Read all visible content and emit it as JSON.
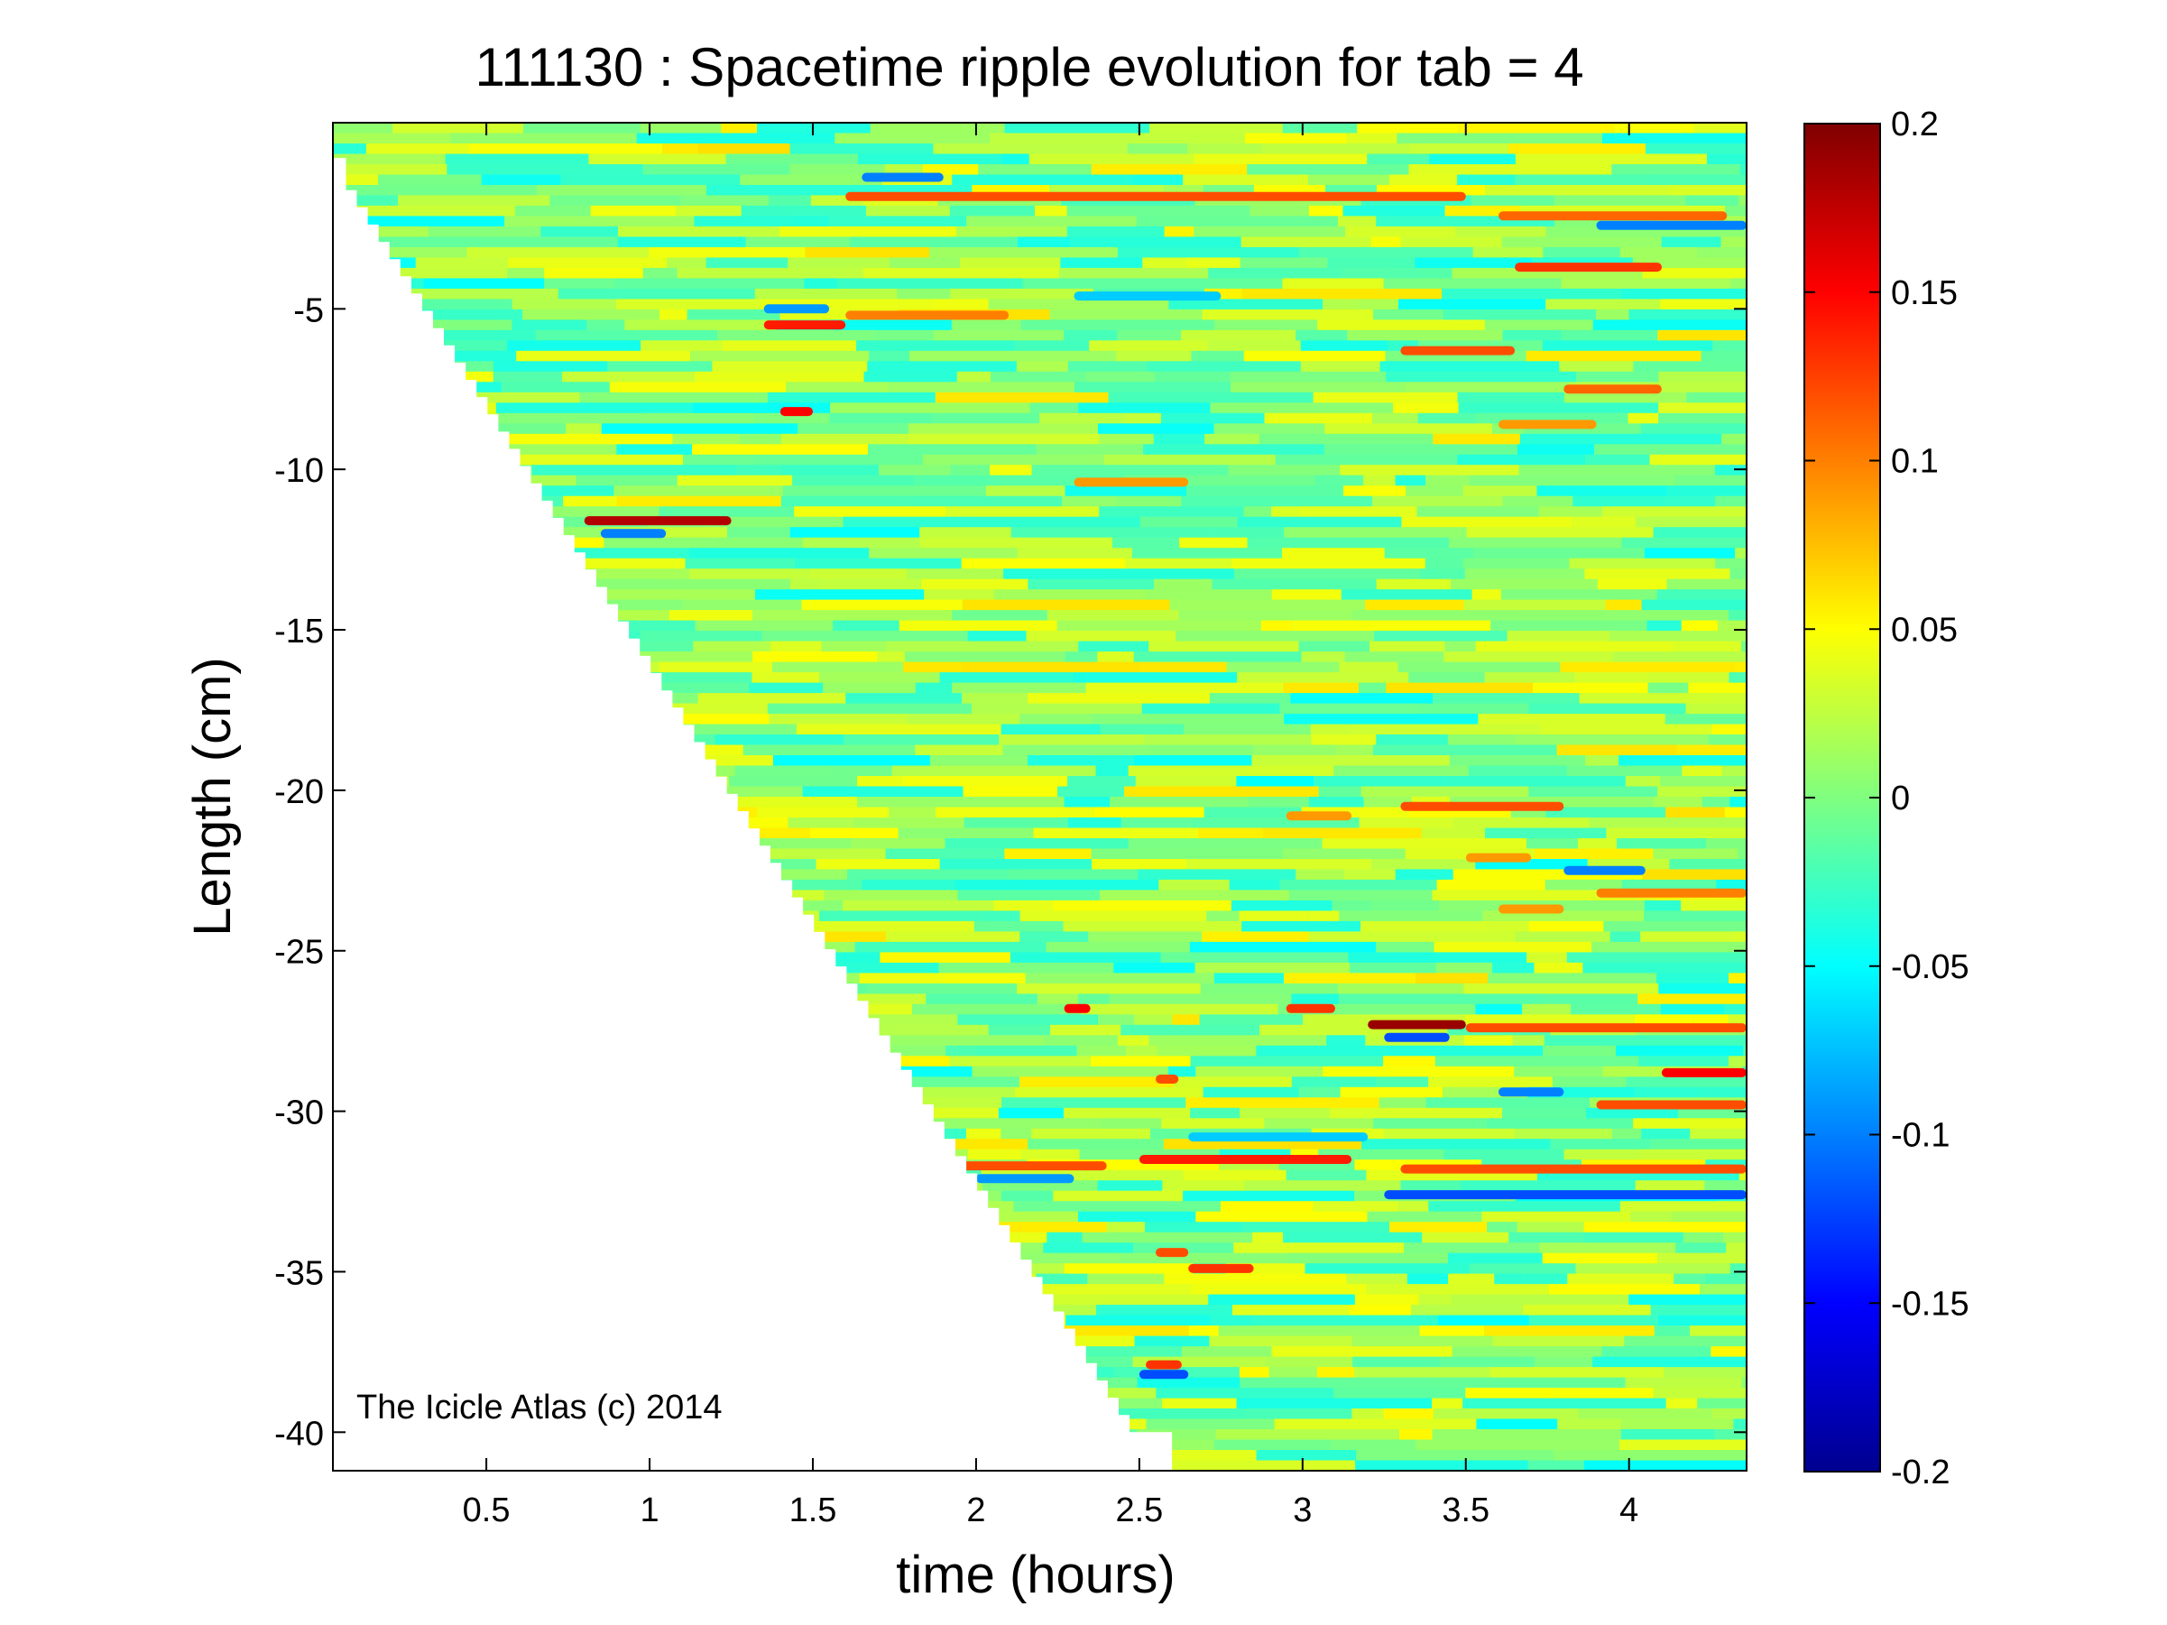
{
  "chart_data": {
    "type": "heatmap",
    "title": "111130 : Spacetime ripple evolution for tab = 4",
    "xlabel": "time (hours)",
    "ylabel": "Length (cm)",
    "xlim": [
      0.03,
      4.36
    ],
    "ylim": [
      -41.2,
      0.8
    ],
    "x_ticks": [
      0.5,
      1,
      1.5,
      2,
      2.5,
      3,
      3.5,
      4
    ],
    "y_ticks": [
      -5,
      -10,
      -15,
      -20,
      -25,
      -30,
      -35,
      -40
    ],
    "colorbar": {
      "colormap": "jet",
      "range": [
        -0.2,
        0.2
      ],
      "ticks": [
        0.2,
        0.15,
        0.1,
        0.05,
        0,
        -0.05,
        -0.1,
        -0.15,
        -0.2
      ]
    },
    "grid": false,
    "annotation": "The Icicle Atlas (c) 2014",
    "data_boundary": {
      "description": "icicle length grows with time; cells exist only where length >= -(tip length at time t)",
      "points": [
        [
          0.03,
          -0.3
        ],
        [
          0.07,
          -1.3
        ],
        [
          2.47,
          -40.0
        ],
        [
          2.6,
          -41.2
        ]
      ]
    },
    "features": [
      {
        "t_start": 1.6,
        "t_end": 3.5,
        "length": -1.5,
        "value": 0.12
      },
      {
        "t_start": 1.65,
        "t_end": 1.9,
        "length": -0.9,
        "value": -0.1
      },
      {
        "t_start": 3.6,
        "t_end": 4.3,
        "length": -2.1,
        "value": 0.11
      },
      {
        "t_start": 3.9,
        "t_end": 4.36,
        "length": -2.4,
        "value": -0.1
      },
      {
        "t_start": 3.65,
        "t_end": 4.1,
        "length": -3.7,
        "value": 0.13
      },
      {
        "t_start": 2.3,
        "t_end": 2.75,
        "length": -4.6,
        "value": -0.07
      },
      {
        "t_start": 1.35,
        "t_end": 1.6,
        "length": -5.5,
        "value": 0.14
      },
      {
        "t_start": 1.6,
        "t_end": 2.1,
        "length": -5.2,
        "value": 0.1
      },
      {
        "t_start": 1.35,
        "t_end": 1.55,
        "length": -5.0,
        "value": -0.09
      },
      {
        "t_start": 3.3,
        "t_end": 3.65,
        "length": -6.3,
        "value": 0.12
      },
      {
        "t_start": 3.8,
        "t_end": 4.1,
        "length": -7.5,
        "value": 0.11
      },
      {
        "t_start": 1.4,
        "t_end": 1.5,
        "length": -8.2,
        "value": 0.15
      },
      {
        "t_start": 3.6,
        "t_end": 3.9,
        "length": -8.6,
        "value": 0.09
      },
      {
        "t_start": 2.3,
        "t_end": 2.65,
        "length": -10.4,
        "value": 0.09
      },
      {
        "t_start": 0.8,
        "t_end": 1.25,
        "length": -11.6,
        "value": 0.18
      },
      {
        "t_start": 0.85,
        "t_end": 1.05,
        "length": -12.0,
        "value": -0.1
      },
      {
        "t_start": 3.3,
        "t_end": 3.8,
        "length": -20.5,
        "value": 0.12
      },
      {
        "t_start": 2.95,
        "t_end": 3.15,
        "length": -20.8,
        "value": 0.09
      },
      {
        "t_start": 3.5,
        "t_end": 3.7,
        "length": -22.1,
        "value": 0.09
      },
      {
        "t_start": 3.8,
        "t_end": 4.05,
        "length": -22.5,
        "value": -0.1
      },
      {
        "t_start": 3.9,
        "t_end": 4.36,
        "length": -23.2,
        "value": 0.1
      },
      {
        "t_start": 3.6,
        "t_end": 3.8,
        "length": -23.7,
        "value": 0.09
      },
      {
        "t_start": 2.27,
        "t_end": 2.35,
        "length": -26.8,
        "value": 0.15
      },
      {
        "t_start": 2.95,
        "t_end": 3.1,
        "length": -26.8,
        "value": 0.13
      },
      {
        "t_start": 3.2,
        "t_end": 3.5,
        "length": -27.3,
        "value": 0.19
      },
      {
        "t_start": 3.25,
        "t_end": 3.45,
        "length": -27.7,
        "value": -0.12
      },
      {
        "t_start": 3.5,
        "t_end": 4.36,
        "length": -27.4,
        "value": 0.12
      },
      {
        "t_start": 4.1,
        "t_end": 4.36,
        "length": -28.8,
        "value": 0.15
      },
      {
        "t_start": 2.55,
        "t_end": 2.62,
        "length": -29.0,
        "value": 0.12
      },
      {
        "t_start": 3.6,
        "t_end": 3.8,
        "length": -29.4,
        "value": -0.1
      },
      {
        "t_start": 3.9,
        "t_end": 4.36,
        "length": -29.8,
        "value": 0.12
      },
      {
        "t_start": 2.65,
        "t_end": 3.2,
        "length": -30.8,
        "value": -0.07
      },
      {
        "t_start": 1.95,
        "t_end": 2.4,
        "length": -31.7,
        "value": 0.12
      },
      {
        "t_start": 2.5,
        "t_end": 3.15,
        "length": -31.5,
        "value": 0.14
      },
      {
        "t_start": 3.3,
        "t_end": 4.36,
        "length": -31.8,
        "value": 0.12
      },
      {
        "t_start": 2.0,
        "t_end": 2.3,
        "length": -32.1,
        "value": -0.09
      },
      {
        "t_start": 3.25,
        "t_end": 4.36,
        "length": -32.6,
        "value": -0.12
      },
      {
        "t_start": 2.55,
        "t_end": 2.65,
        "length": -34.4,
        "value": 0.12
      },
      {
        "t_start": 2.65,
        "t_end": 2.85,
        "length": -34.9,
        "value": 0.13
      },
      {
        "t_start": 2.5,
        "t_end": 2.65,
        "length": -38.2,
        "value": -0.12
      },
      {
        "t_start": 2.52,
        "t_end": 2.63,
        "length": -37.9,
        "value": 0.13
      }
    ]
  }
}
